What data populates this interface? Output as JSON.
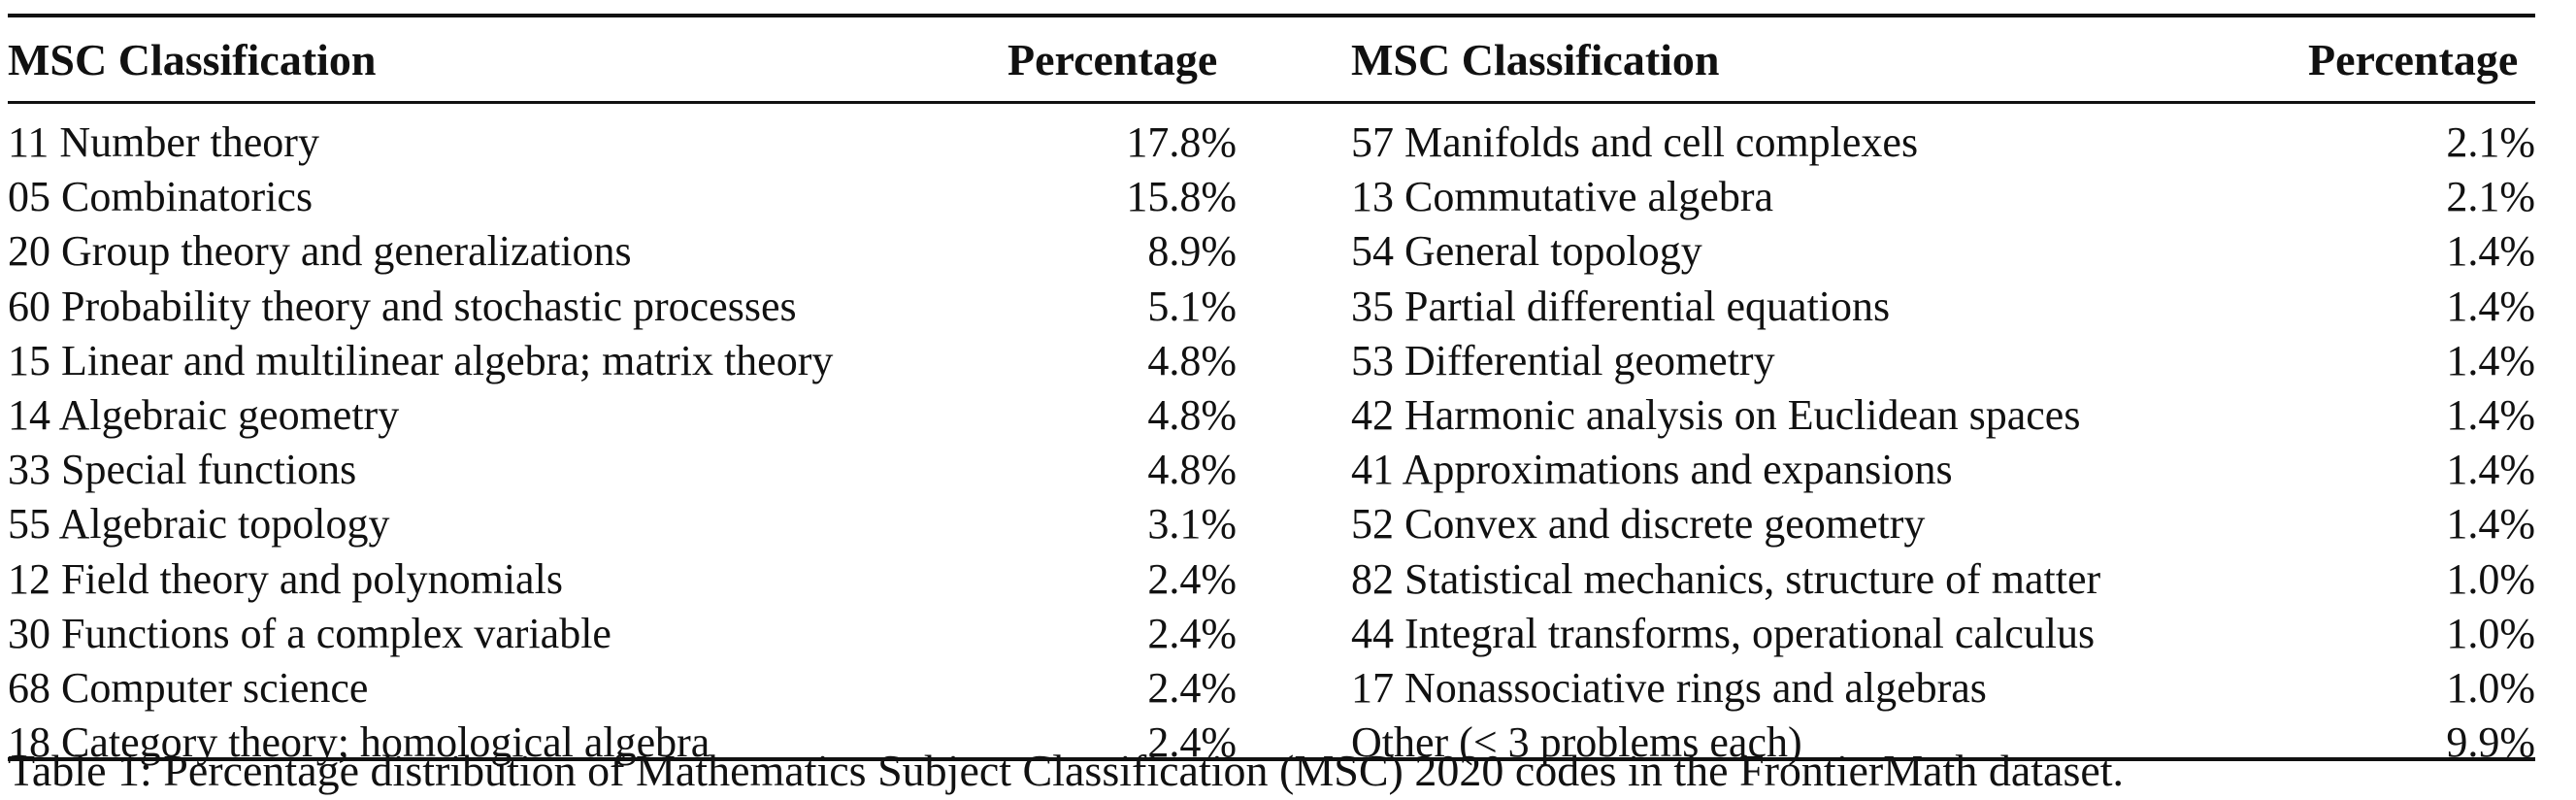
{
  "table": {
    "headers": {
      "classification": "MSC Classification",
      "percentage": "Percentage"
    },
    "left_rows": [
      {
        "label": "11 Number theory",
        "pct": "17.8%"
      },
      {
        "label": "05 Combinatorics",
        "pct": "15.8%"
      },
      {
        "label": "20 Group theory and generalizations",
        "pct": "8.9%"
      },
      {
        "label": "60 Probability theory and stochastic processes",
        "pct": "5.1%"
      },
      {
        "label": "15 Linear and multilinear algebra; matrix theory",
        "pct": "4.8%"
      },
      {
        "label": "14 Algebraic geometry",
        "pct": "4.8%"
      },
      {
        "label": "33 Special functions",
        "pct": "4.8%"
      },
      {
        "label": "55 Algebraic topology",
        "pct": "3.1%"
      },
      {
        "label": "12 Field theory and polynomials",
        "pct": "2.4%"
      },
      {
        "label": "30 Functions of a complex variable",
        "pct": "2.4%"
      },
      {
        "label": "68 Computer science",
        "pct": "2.4%"
      },
      {
        "label": "18 Category theory; homological algebra",
        "pct": "2.4%"
      }
    ],
    "right_rows": [
      {
        "label": "57 Manifolds and cell complexes",
        "pct": "2.1%"
      },
      {
        "label": "13 Commutative algebra",
        "pct": "2.1%"
      },
      {
        "label": "54 General topology",
        "pct": "1.4%"
      },
      {
        "label": "35 Partial differential equations",
        "pct": "1.4%"
      },
      {
        "label": "53 Differential geometry",
        "pct": "1.4%"
      },
      {
        "label": "42 Harmonic analysis on Euclidean spaces",
        "pct": "1.4%"
      },
      {
        "label": "41 Approximations and expansions",
        "pct": "1.4%"
      },
      {
        "label": "52 Convex and discrete geometry",
        "pct": "1.4%"
      },
      {
        "label": "82 Statistical mechanics, structure of matter",
        "pct": "1.0%"
      },
      {
        "label": "44 Integral transforms, operational calculus",
        "pct": "1.0%"
      },
      {
        "label": "17 Nonassociative rings and algebras",
        "pct": "1.0%"
      },
      {
        "label": "Other (< 3 problems each)",
        "pct": "9.9%"
      }
    ]
  },
  "caption": "Table 1: Percentage distribution of Mathematics Subject Classification (MSC) 2020 codes in the FrontierMath dataset."
}
